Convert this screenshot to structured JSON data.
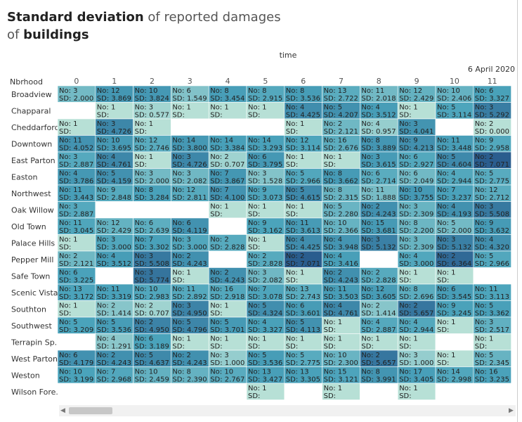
{
  "title": {
    "part1": "Standard deviation",
    "part2": " of reported damages",
    "part3": "of ",
    "part4": "buildings"
  },
  "column_header": "time",
  "date_label": "6 April 2020",
  "row_header": "Nbrhood",
  "colors": {
    "empty": "#ffffff",
    "low": "#b7e0d6",
    "mid": "#4aa3bb",
    "high": "#2a5c8e"
  },
  "chart_data": {
    "type": "heatmap",
    "x": [
      0,
      1,
      2,
      3,
      4,
      5,
      6,
      7,
      8,
      9,
      10,
      11
    ],
    "rows": [
      "Broadview",
      "Chapparal",
      "Cheddarford",
      "Downtown",
      "East Parton",
      "Easton",
      "Northwest",
      "Oak Willow",
      "Old Town",
      "Palace Hills",
      "Pepper Mill",
      "Safe Town",
      "Scenic Vista",
      "Southton",
      "Southwest",
      "Terrapin Sp..",
      "West Parton",
      "Weston",
      "Wilson Fore.."
    ],
    "cells": [
      [
        [
          "No: 3",
          "SD: 2.000"
        ],
        [
          "No: 12",
          "SD: 3.869"
        ],
        [
          "No: 10",
          "SD: 3.824"
        ],
        [
          "No: 6",
          "SD: 1.549"
        ],
        [
          "No: 8",
          "SD: 3.454"
        ],
        [
          "No: 8",
          "SD: 2.915"
        ],
        [
          "No: 8",
          "SD: 3.536"
        ],
        [
          "No: 13",
          "SD: 2.722"
        ],
        [
          "No: 11",
          "SD: 2.018"
        ],
        [
          "No: 12",
          "SD: 2.429"
        ],
        [
          "No: 10",
          "SD: 2.406"
        ],
        [
          "No: 6",
          "SD: 3.327"
        ]
      ],
      [
        null,
        [
          "No: 1",
          "SD:"
        ],
        [
          "No: 3",
          "SD: 0.577"
        ],
        [
          "No: 1",
          "SD:"
        ],
        [
          "No: 1",
          "SD:"
        ],
        [
          "No: 1",
          "SD:"
        ],
        [
          "No: 4",
          "SD: 4.425"
        ],
        [
          "No: 5",
          "SD: 4.207"
        ],
        [
          "No: 4",
          "SD: 3.512"
        ],
        [
          "No: 1",
          "SD:"
        ],
        [
          "No: 5",
          "SD: 3.114"
        ],
        [
          "No: 3",
          "SD: 5.292"
        ]
      ],
      [
        [
          "No: 1",
          "SD:"
        ],
        [
          "No: 3",
          "SD: 4.726"
        ],
        [
          "No: 1",
          "SD:"
        ],
        null,
        null,
        null,
        [
          "No: 1",
          "SD:"
        ],
        [
          "No: 2",
          "SD: 2.121"
        ],
        [
          "No: 4",
          "SD: 0.957"
        ],
        [
          "No: 3",
          "SD: 4.041"
        ],
        null,
        [
          "No: 2",
          "SD: 0.000"
        ]
      ],
      [
        [
          "No: 11",
          "SD: 4.052"
        ],
        [
          "No: 10",
          "SD: 3.695"
        ],
        [
          "No: 12",
          "SD: 2.746"
        ],
        [
          "No: 14",
          "SD: 3.800"
        ],
        [
          "No: 14",
          "SD: 3.384"
        ],
        [
          "No: 14",
          "SD: 3.293"
        ],
        [
          "No: 12",
          "SD: 3.114"
        ],
        [
          "No: 16",
          "SD: 2.676"
        ],
        [
          "No: 8",
          "SD: 3.889"
        ],
        [
          "No: 9",
          "SD: 4.213"
        ],
        [
          "No: 11",
          "SD: 3.448"
        ],
        [
          "No: 9",
          "SD: 2.958"
        ]
      ],
      [
        [
          "No: 3",
          "SD: 2.887"
        ],
        [
          "No: 4",
          "SD: 4.761"
        ],
        [
          "No: 1",
          "SD:"
        ],
        [
          "No: 3",
          "SD: 4.726"
        ],
        [
          "No: 2",
          "SD: 0.707"
        ],
        [
          "No: 6",
          "SD: 3.795"
        ],
        [
          "No: 1",
          "SD:"
        ],
        [
          "No: 1",
          "SD:"
        ],
        [
          "No: 3",
          "SD: 3.615"
        ],
        [
          "No: 6",
          "SD: 2.927"
        ],
        [
          "No: 5",
          "SD: 4.604"
        ],
        [
          "No: 2",
          "SD: 7.071"
        ]
      ],
      [
        [
          "No: 4",
          "SD: 3.786"
        ],
        [
          "No: 5",
          "SD: 4.159"
        ],
        [
          "No: 3",
          "SD: 2.000"
        ],
        [
          "No: 3",
          "SD: 2.082"
        ],
        [
          "No: 7",
          "SD: 3.867"
        ],
        [
          "No: 3",
          "SD: 1.528"
        ],
        [
          "No: 5",
          "SD: 2.966"
        ],
        [
          "No: 8",
          "SD: 3.662"
        ],
        [
          "No: 6",
          "SD: 2.714"
        ],
        [
          "No: 6",
          "SD: 2.049"
        ],
        [
          "No: 4",
          "SD: 2.944"
        ],
        [
          "No: 5",
          "SD: 2.775"
        ]
      ],
      [
        [
          "No: 11",
          "SD: 3.443"
        ],
        [
          "No: 9",
          "SD: 2.848"
        ],
        [
          "No: 8",
          "SD: 3.284"
        ],
        [
          "No: 12",
          "SD: 2.811"
        ],
        [
          "No: 7",
          "SD: 4.100"
        ],
        [
          "No: 9",
          "SD: 3.073"
        ],
        [
          "No: 5",
          "SD: 4.615"
        ],
        [
          "No: 8",
          "SD: 2.315"
        ],
        [
          "No: 11",
          "SD: 1.888"
        ],
        [
          "No: 10",
          "SD: 3.755"
        ],
        [
          "No: 7",
          "SD: 3.237"
        ],
        [
          "No: 12",
          "SD: 2.712"
        ]
      ],
      [
        [
          "No: 3",
          "SD: 2.887"
        ],
        null,
        null,
        null,
        [
          "No: 1",
          "SD:"
        ],
        [
          "No: 1",
          "SD:"
        ],
        [
          "No: 1",
          "SD:"
        ],
        [
          "No: 5",
          "SD: 2.280"
        ],
        [
          "No: 2",
          "SD: 4.243"
        ],
        [
          "No: 3",
          "SD: 2.309"
        ],
        [
          "No: 4",
          "SD: 4.193"
        ],
        [
          "No: 3",
          "SD: 5.508"
        ]
      ],
      [
        [
          "No: 11",
          "SD: 3.045"
        ],
        [
          "No: 12",
          "SD: 2.429"
        ],
        [
          "No: 6",
          "SD: 2.639"
        ],
        [
          "No: 6",
          "SD: 4.119"
        ],
        null,
        [
          "No: 9",
          "SD: 3.162"
        ],
        [
          "No: 11",
          "SD: 3.613"
        ],
        [
          "No: 10",
          "SD: 2.366"
        ],
        [
          "No: 15",
          "SD: 3.681"
        ],
        [
          "No: 8",
          "SD: 2.200"
        ],
        [
          "No: 5",
          "SD: 2.000"
        ],
        [
          "No: 9",
          "SD: 3.632"
        ]
      ],
      [
        [
          "No: 1",
          "SD:"
        ],
        [
          "No: 3",
          "SD: 3.000"
        ],
        [
          "No: 7",
          "SD: 3.302"
        ],
        [
          "No: 3",
          "SD: 3.000"
        ],
        [
          "No: 2",
          "SD: 2.828"
        ],
        [
          "No: 1",
          "SD:"
        ],
        [
          "No: 4",
          "SD: 4.425"
        ],
        [
          "No: 4",
          "SD: 3.948"
        ],
        [
          "No: 3",
          "SD: 5.132"
        ],
        [
          "No: 3",
          "SD: 2.309"
        ],
        [
          "No: 3",
          "SD: 5.132"
        ],
        [
          "No: 4",
          "SD: 4.320"
        ]
      ],
      [
        [
          "No: 2",
          "SD: 2.121"
        ],
        [
          "No: 4",
          "SD: 3.512"
        ],
        [
          "No: 3",
          "SD: 5.508"
        ],
        [
          "No: 2",
          "SD: 4.243"
        ],
        null,
        [
          "No: 2",
          "SD: 2.828"
        ],
        [
          "No: 2",
          "SD: 7.071"
        ],
        [
          "No: 4",
          "SD: 3.416"
        ],
        null,
        [
          "No: 4",
          "SD: 3.000"
        ],
        [
          "No: 2",
          "SD: 6.364"
        ],
        [
          "No: 5",
          "SD: 2.966"
        ]
      ],
      [
        [
          "No: 6",
          "SD: 3.225"
        ],
        null,
        [
          "No: 3",
          "SD: 5.774"
        ],
        [
          "No: 1",
          "SD:"
        ],
        [
          "No: 2",
          "SD: 4.243"
        ],
        [
          "No: 3",
          "SD: 2.082"
        ],
        [
          "No: 1",
          "SD:"
        ],
        [
          "No: 2",
          "SD: 4.243"
        ],
        [
          "No: 2",
          "SD: 2.828"
        ],
        [
          "No: 1",
          "SD:"
        ],
        [
          "No: 1",
          "SD:"
        ],
        null
      ],
      [
        [
          "No: 13",
          "SD: 3.172"
        ],
        [
          "No: 11",
          "SD: 3.319"
        ],
        [
          "No: 10",
          "SD: 2.983"
        ],
        [
          "No: 11",
          "SD: 2.892"
        ],
        [
          "No: 16",
          "SD: 2.918"
        ],
        [
          "No: 7",
          "SD: 3.078"
        ],
        [
          "No: 13",
          "SD: 2.743"
        ],
        [
          "No: 11",
          "SD: 3.503"
        ],
        [
          "No: 12",
          "SD: 3.605"
        ],
        [
          "No: 8",
          "SD: 2.696"
        ],
        [
          "No: 6",
          "SD: 3.545"
        ],
        [
          "No: 11",
          "SD: 3.113"
        ]
      ],
      [
        [
          "No: 1",
          "SD:"
        ],
        [
          "No: 2",
          "SD: 1.414"
        ],
        [
          "No: 2",
          "SD: 0.707"
        ],
        [
          "No: 3",
          "SD: 4.950"
        ],
        [
          "No: 1",
          "SD:"
        ],
        [
          "No: 5",
          "SD: 4.324"
        ],
        [
          "No: 6",
          "SD: 3.601"
        ],
        [
          "No: 4",
          "SD: 4.761"
        ],
        [
          "No: 2",
          "SD: 1.414"
        ],
        [
          "No: 2",
          "SD: 5.657"
        ],
        [
          "No: 9",
          "SD: 3.245"
        ],
        [
          "No: 5",
          "SD: 3.362"
        ]
      ],
      [
        [
          "No: 5",
          "SD: 3.209"
        ],
        [
          "No: 5",
          "SD: 3.536"
        ],
        [
          "No: 2",
          "SD: 4.950"
        ],
        [
          "No: 5",
          "SD: 4.796"
        ],
        [
          "No: 5",
          "SD: 3.701"
        ],
        [
          "No: 4",
          "SD: 3.327"
        ],
        [
          "No: 5",
          "SD: 4.113"
        ],
        [
          "No: 1",
          "SD:"
        ],
        [
          "No: 4",
          "SD: 2.887"
        ],
        [
          "No: 4",
          "SD: 2.944"
        ],
        [
          "No: 1",
          "SD:"
        ],
        [
          "No: 3",
          "SD: 2.517"
        ]
      ],
      [
        null,
        [
          "No: 4",
          "SD: 1.291"
        ],
        [
          "No: 6",
          "SD: 3.189"
        ],
        [
          "No: 1",
          "SD:"
        ],
        [
          "No: 1",
          "SD:"
        ],
        [
          "No: 1",
          "SD:"
        ],
        [
          "No: 1",
          "SD:"
        ],
        [
          "No: 1",
          "SD:"
        ],
        [
          "No: 1",
          "SD:"
        ],
        [
          "No: 1",
          "SD:"
        ],
        null,
        [
          "No: 1",
          "SD:"
        ]
      ],
      [
        [
          "No: 6",
          "SD: 4.179"
        ],
        [
          "No: 2",
          "SD: 4.243"
        ],
        [
          "No: 5",
          "SD: 4.637"
        ],
        [
          "No: 2",
          "SD: 4.243"
        ],
        [
          "No: 3",
          "SD: 1.000"
        ],
        [
          "No: 5",
          "SD: 3.536"
        ],
        [
          "No: 5",
          "SD: 2.775"
        ],
        [
          "No: 10",
          "SD: 2.300"
        ],
        [
          "No: 2",
          "SD: 5.657"
        ],
        [
          "No: 3",
          "SD: 1.000"
        ],
        [
          "No: 1",
          "SD:"
        ],
        [
          "No: 5",
          "SD: 2.345"
        ]
      ],
      [
        [
          "No: 10",
          "SD: 3.199"
        ],
        [
          "No: 7",
          "SD: 2.968"
        ],
        [
          "No: 10",
          "SD: 2.459"
        ],
        [
          "No: 8",
          "SD: 2.390"
        ],
        [
          "No: 10",
          "SD: 2.767"
        ],
        [
          "No: 13",
          "SD: 3.427"
        ],
        [
          "No: 13",
          "SD: 3.305"
        ],
        [
          "No: 15",
          "SD: 3.121"
        ],
        [
          "No: 8",
          "SD: 3.991"
        ],
        [
          "No: 17",
          "SD: 3.405"
        ],
        [
          "No: 14",
          "SD: 2.998"
        ],
        [
          "No: 16",
          "SD: 3.235"
        ]
      ],
      [
        null,
        null,
        null,
        null,
        null,
        [
          "No: 1",
          "SD:"
        ],
        null,
        [
          "No: 1",
          "SD:"
        ],
        null,
        [
          "No: 1",
          "SD:"
        ],
        null,
        null
      ]
    ]
  }
}
